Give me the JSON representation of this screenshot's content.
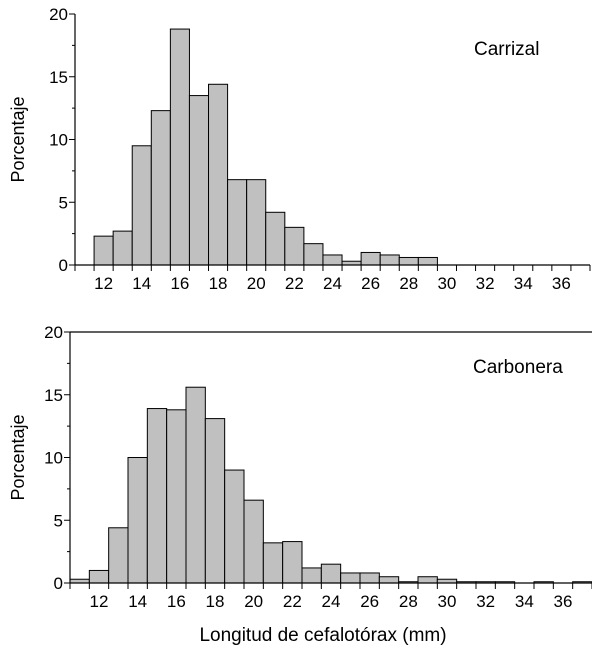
{
  "chart_data": [
    {
      "type": "bar",
      "annotation": "Carrizal",
      "ylabel": "Porcentaje",
      "xlabel": "",
      "xlim": [
        11,
        38
      ],
      "ylim": [
        0,
        20
      ],
      "yticks": [
        0,
        5,
        10,
        15,
        20
      ],
      "xticks": [
        12,
        14,
        16,
        18,
        20,
        22,
        24,
        26,
        28,
        30,
        32,
        34,
        36
      ],
      "bin_width": 1,
      "bins_start": [
        12,
        13,
        14,
        15,
        16,
        17,
        18,
        19,
        20,
        21,
        22,
        23,
        24,
        25,
        26,
        27,
        28,
        29
      ],
      "values": [
        2.3,
        2.7,
        9.5,
        12.3,
        18.8,
        13.5,
        14.4,
        6.8,
        6.8,
        4.2,
        3.0,
        1.7,
        0.8,
        0.3,
        1.0,
        0.8,
        0.6,
        0.6
      ],
      "bar_color": "#c0c0c0"
    },
    {
      "type": "bar",
      "annotation": "Carbonera",
      "ylabel": "Porcentaje",
      "xlabel": "Longitud de cefalotórax (mm)",
      "xlim": [
        11,
        38
      ],
      "ylim": [
        0,
        20
      ],
      "yticks": [
        0,
        5,
        10,
        15,
        20
      ],
      "xticks": [
        12,
        14,
        16,
        18,
        20,
        22,
        24,
        26,
        28,
        30,
        32,
        34,
        36
      ],
      "bin_width": 1,
      "bins_start": [
        11,
        12,
        13,
        14,
        15,
        16,
        17,
        18,
        19,
        20,
        21,
        22,
        23,
        24,
        25,
        26,
        27,
        28,
        29,
        30,
        31,
        32,
        33,
        34,
        35,
        36,
        37
      ],
      "values": [
        0.3,
        1.0,
        4.4,
        10.0,
        13.9,
        13.8,
        15.6,
        13.1,
        9.0,
        6.6,
        3.2,
        3.3,
        1.2,
        1.5,
        0.8,
        0.8,
        0.5,
        0.1,
        0.5,
        0.3,
        0.1,
        0.1,
        0.1,
        0.0,
        0.1,
        0.0,
        0.1
      ],
      "bar_color": "#c0c0c0"
    }
  ]
}
